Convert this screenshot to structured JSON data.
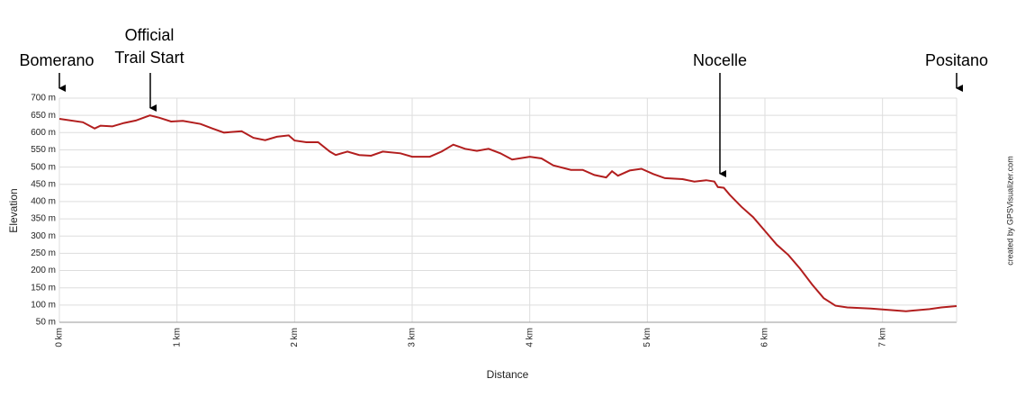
{
  "chart_data": {
    "type": "line",
    "x_label": "Distance",
    "y_label": "Elevation",
    "credit": "created by GPSVisualizer.com",
    "annotations": [
      {
        "text": [
          "Bomerano"
        ]
      },
      {
        "text": [
          "Official",
          "Trail Start"
        ]
      },
      {
        "text": [
          "Nocelle"
        ]
      },
      {
        "text": [
          "Positano"
        ]
      }
    ],
    "x": [
      0,
      0.2,
      0.3,
      0.35,
      0.45,
      0.55,
      0.65,
      0.77,
      0.85,
      0.95,
      1.05,
      1.2,
      1.3,
      1.4,
      1.55,
      1.65,
      1.75,
      1.85,
      1.95,
      2.0,
      2.1,
      2.2,
      2.3,
      2.35,
      2.45,
      2.55,
      2.65,
      2.75,
      2.9,
      3.0,
      3.15,
      3.25,
      3.35,
      3.45,
      3.55,
      3.65,
      3.75,
      3.85,
      4.0,
      4.1,
      4.2,
      4.35,
      4.45,
      4.55,
      4.65,
      4.7,
      4.75,
      4.85,
      4.95,
      5.05,
      5.15,
      5.3,
      5.4,
      5.5,
      5.57,
      5.6,
      5.65,
      5.7,
      5.8,
      5.9,
      6.0,
      6.1,
      6.2,
      6.3,
      6.4,
      6.5,
      6.6,
      6.7,
      6.9,
      7.0,
      7.2,
      7.4,
      7.5,
      7.63
    ],
    "values": [
      640,
      630,
      612,
      620,
      618,
      628,
      635,
      650,
      643,
      632,
      634,
      625,
      612,
      600,
      604,
      585,
      578,
      588,
      592,
      577,
      572,
      572,
      545,
      535,
      545,
      535,
      533,
      545,
      540,
      530,
      530,
      545,
      565,
      553,
      547,
      553,
      540,
      522,
      530,
      525,
      505,
      492,
      492,
      477,
      470,
      488,
      475,
      490,
      495,
      480,
      468,
      465,
      458,
      462,
      458,
      442,
      440,
      420,
      385,
      355,
      315,
      275,
      245,
      205,
      160,
      120,
      98,
      93,
      90,
      87,
      82,
      88,
      93,
      97
    ],
    "color": "#b21e1e",
    "xlim": [
      0,
      7.63
    ],
    "ylim": [
      50,
      700
    ],
    "xticks": [
      {
        "value": 0,
        "label": "0 km"
      },
      {
        "value": 1,
        "label": "1 km"
      },
      {
        "value": 2,
        "label": "2 km"
      },
      {
        "value": 3,
        "label": "3 km"
      },
      {
        "value": 4,
        "label": "4 km"
      },
      {
        "value": 5,
        "label": "5 km"
      },
      {
        "value": 6,
        "label": "6 km"
      },
      {
        "value": 7,
        "label": "7 km"
      }
    ],
    "yticks": [
      {
        "value": 50,
        "label": "50 m"
      },
      {
        "value": 100,
        "label": "100 m"
      },
      {
        "value": 150,
        "label": "150 m"
      },
      {
        "value": 200,
        "label": "200 m"
      },
      {
        "value": 250,
        "label": "250 m"
      },
      {
        "value": 300,
        "label": "300 m"
      },
      {
        "value": 350,
        "label": "350 m"
      },
      {
        "value": 400,
        "label": "400 m"
      },
      {
        "value": 450,
        "label": "450 m"
      },
      {
        "value": 500,
        "label": "500 m"
      },
      {
        "value": 550,
        "label": "550 m"
      },
      {
        "value": 600,
        "label": "600 m"
      },
      {
        "value": 650,
        "label": "650 m"
      },
      {
        "value": 700,
        "label": "700 m"
      }
    ],
    "grid": true
  }
}
